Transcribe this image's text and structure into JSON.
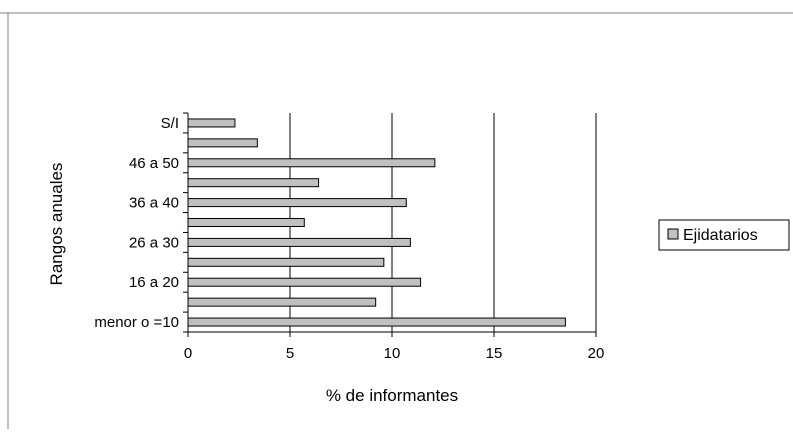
{
  "chart_data": {
    "type": "bar",
    "orientation": "horizontal",
    "title": "",
    "xlabel": "% de informantes",
    "ylabel": "Rangos anuales",
    "xlim": [
      0,
      20
    ],
    "x_ticks": [
      0,
      5,
      10,
      15,
      20
    ],
    "grid": "vertical",
    "legend_position": "right",
    "categories": [
      "menor o =10",
      "",
      "16 a 20",
      "",
      "26 a 30",
      "",
      "36 a 40",
      "",
      "46 a 50",
      "",
      "S/I"
    ],
    "series": [
      {
        "name": "Ejidatarios",
        "color": "#c0c0c0",
        "values": [
          18.5,
          9.2,
          11.4,
          9.6,
          10.9,
          5.7,
          10.7,
          6.4,
          12.1,
          3.4,
          2.3
        ]
      }
    ]
  }
}
